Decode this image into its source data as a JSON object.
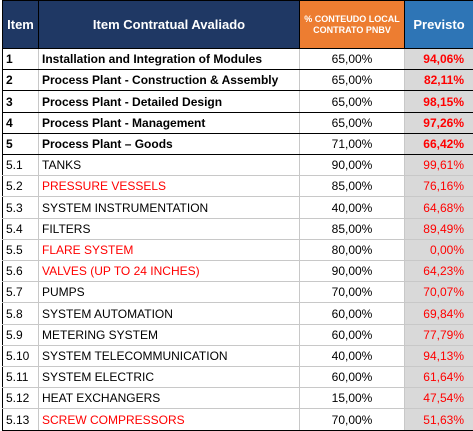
{
  "header": {
    "item": "Item",
    "description": "Item Contratual Avaliado",
    "local_content": "% CONTEUDO LOCAL CONTRATO PNBV",
    "forecast": "Previsto"
  },
  "rows": [
    {
      "item": "1",
      "description": "Installation and Integration of Modules",
      "local_content": "65,00%",
      "forecast": "94,06%",
      "bold": true,
      "description_red": false
    },
    {
      "item": "2",
      "description": "Process Plant - Construction & Assembly",
      "local_content": "65,00%",
      "forecast": "82,11%",
      "bold": true,
      "description_red": false
    },
    {
      "item": "3",
      "description": "Process Plant - Detailed Design",
      "local_content": "65,00%",
      "forecast": "98,15%",
      "bold": true,
      "description_red": false
    },
    {
      "item": "4",
      "description": "Process Plant - Management",
      "local_content": "65,00%",
      "forecast": "97,26%",
      "bold": true,
      "description_red": false
    },
    {
      "item": "5",
      "description": "Process Plant – Goods",
      "local_content": "71,00%",
      "forecast": "66,42%",
      "bold": true,
      "description_red": false
    },
    {
      "item": "5.1",
      "description": "TANKS",
      "local_content": "90,00%",
      "forecast": "99,61%",
      "bold": false,
      "description_red": false
    },
    {
      "item": "5.2",
      "description": "PRESSURE VESSELS",
      "local_content": "85,00%",
      "forecast": "76,16%",
      "bold": false,
      "description_red": true
    },
    {
      "item": "5.3",
      "description": "SYSTEM INSTRUMENTATION",
      "local_content": "40,00%",
      "forecast": "64,68%",
      "bold": false,
      "description_red": false
    },
    {
      "item": "5.4",
      "description": "FILTERS",
      "local_content": "85,00%",
      "forecast": "89,49%",
      "bold": false,
      "description_red": false
    },
    {
      "item": "5.5",
      "description": "FLARE SYSTEM",
      "local_content": "80,00%",
      "forecast": "0,00%",
      "bold": false,
      "description_red": true
    },
    {
      "item": "5.6",
      "description": "VALVES (UP TO 24 INCHES)",
      "local_content": "90,00%",
      "forecast": "64,23%",
      "bold": false,
      "description_red": true
    },
    {
      "item": "5.7",
      "description": "PUMPS",
      "local_content": "70,00%",
      "forecast": "70,07%",
      "bold": false,
      "description_red": false
    },
    {
      "item": "5.8",
      "description": "SYSTEM AUTOMATION",
      "local_content": "60,00%",
      "forecast": "69,84%",
      "bold": false,
      "description_red": false
    },
    {
      "item": "5.9",
      "description": "METERING SYSTEM",
      "local_content": "60,00%",
      "forecast": "77,79%",
      "bold": false,
      "description_red": false
    },
    {
      "item": "5.10",
      "description": "SYSTEM TELECOMMUNICATION",
      "local_content": "40,00%",
      "forecast": "94,13%",
      "bold": false,
      "description_red": false
    },
    {
      "item": "5.11",
      "description": "SYSTEM ELECTRIC",
      "local_content": "60,00%",
      "forecast": "61,64%",
      "bold": false,
      "description_red": false
    },
    {
      "item": "5.12",
      "description": "HEAT EXCHANGERS",
      "local_content": "15,00%",
      "forecast": "47,54%",
      "bold": false,
      "description_red": false
    },
    {
      "item": "5.13",
      "description": "SCREW COMPRESSORS",
      "local_content": "70,00%",
      "forecast": "51,63%",
      "bold": false,
      "description_red": true
    }
  ],
  "colors": {
    "header_dark_blue": "#1f3864",
    "header_orange": "#ed7d31",
    "header_blue": "#2e75b6",
    "forecast_bg": "#d9d9d9",
    "highlight_red": "#ff0000"
  }
}
